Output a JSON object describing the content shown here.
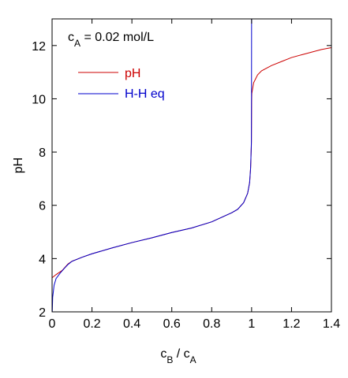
{
  "chart_data": {
    "type": "line",
    "x_axis": {
      "label_main": "c",
      "label_sub1": "B",
      "label_mid": " / c",
      "label_sub2": "A",
      "range": [
        0,
        1.4
      ],
      "ticks": [
        0,
        0.2,
        0.4,
        0.6,
        0.8,
        1,
        1.2,
        1.4
      ],
      "tick_labels": [
        "0",
        "0.2",
        "0.4",
        "0.6",
        "0.8",
        "1",
        "1.2",
        "1.4"
      ]
    },
    "y_axis": {
      "label": "pH",
      "range": [
        2,
        13
      ],
      "ticks": [
        2,
        4,
        6,
        8,
        10,
        12
      ],
      "tick_labels": [
        "2",
        "4",
        "6",
        "8",
        "10",
        "12"
      ]
    },
    "annotation": {
      "main": "c",
      "sub": "A",
      "rest": " = 0.02 mol/L"
    },
    "legend": {
      "placement": "top-left"
    },
    "grid": false,
    "series": [
      {
        "name": "pH",
        "color": "#cc0000",
        "points": [
          [
            0,
            3.28
          ],
          [
            0.02,
            3.4
          ],
          [
            0.05,
            3.55
          ],
          [
            0.08,
            3.8
          ],
          [
            0.1,
            3.9
          ],
          [
            0.15,
            4.05
          ],
          [
            0.2,
            4.18
          ],
          [
            0.3,
            4.4
          ],
          [
            0.4,
            4.6
          ],
          [
            0.5,
            4.78
          ],
          [
            0.6,
            4.98
          ],
          [
            0.7,
            5.15
          ],
          [
            0.8,
            5.38
          ],
          [
            0.85,
            5.55
          ],
          [
            0.9,
            5.72
          ],
          [
            0.93,
            5.85
          ],
          [
            0.96,
            6.1
          ],
          [
            0.98,
            6.45
          ],
          [
            0.99,
            6.85
          ],
          [
            0.995,
            7.4
          ],
          [
            0.999,
            8.3
          ],
          [
            1.0,
            9.9
          ],
          [
            1.001,
            10.2
          ],
          [
            1.01,
            10.6
          ],
          [
            1.03,
            10.9
          ],
          [
            1.05,
            11.05
          ],
          [
            1.1,
            11.25
          ],
          [
            1.15,
            11.4
          ],
          [
            1.2,
            11.55
          ],
          [
            1.25,
            11.65
          ],
          [
            1.3,
            11.75
          ],
          [
            1.35,
            11.85
          ],
          [
            1.4,
            11.92
          ]
        ]
      },
      {
        "name": "H-H eq",
        "color": "#0000cc",
        "points": [
          [
            0.001,
            2.0
          ],
          [
            0.003,
            2.55
          ],
          [
            0.01,
            3.0
          ],
          [
            0.02,
            3.25
          ],
          [
            0.04,
            3.45
          ],
          [
            0.06,
            3.62
          ],
          [
            0.08,
            3.78
          ],
          [
            0.1,
            3.9
          ],
          [
            0.15,
            4.05
          ],
          [
            0.2,
            4.18
          ],
          [
            0.3,
            4.4
          ],
          [
            0.4,
            4.6
          ],
          [
            0.5,
            4.78
          ],
          [
            0.6,
            4.98
          ],
          [
            0.7,
            5.15
          ],
          [
            0.8,
            5.38
          ],
          [
            0.85,
            5.55
          ],
          [
            0.9,
            5.72
          ],
          [
            0.93,
            5.85
          ],
          [
            0.96,
            6.1
          ],
          [
            0.98,
            6.45
          ],
          [
            0.99,
            6.85
          ],
          [
            0.995,
            7.4
          ],
          [
            0.999,
            8.4
          ],
          [
            0.9995,
            10
          ],
          [
            0.9999,
            13
          ]
        ]
      }
    ]
  }
}
